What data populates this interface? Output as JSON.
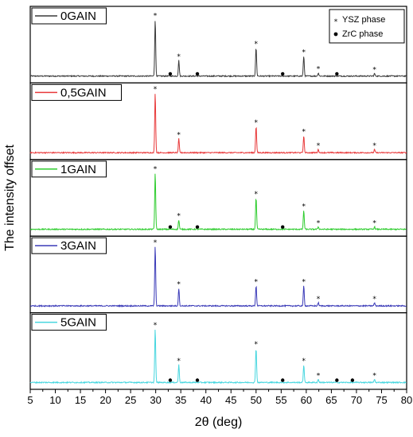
{
  "chart_data": {
    "type": "line",
    "xlabel": "2θ (deg)",
    "ylabel": "The intensity offset",
    "xlim": [
      5,
      80
    ],
    "x_ticks": [
      5,
      10,
      15,
      20,
      25,
      30,
      35,
      40,
      45,
      50,
      55,
      60,
      65,
      70,
      75,
      80
    ],
    "phase_legend": [
      {
        "symbol": "*",
        "label": "YSZ phase"
      },
      {
        "symbol": "•",
        "label": "ZrC phase"
      }
    ],
    "series": [
      {
        "name": "0GAIN",
        "color": "#3a3a3a",
        "peaks": [
          {
            "x": 29.9,
            "height": 0.9
          },
          {
            "x": 34.6,
            "height": 0.25
          },
          {
            "x": 50.0,
            "height": 0.45
          },
          {
            "x": 59.5,
            "height": 0.32
          },
          {
            "x": 62.4,
            "height": 0.05
          },
          {
            "x": 73.6,
            "height": 0.04
          }
        ],
        "ysz_markers": [
          29.9,
          34.6,
          50.0,
          59.5,
          62.4,
          73.6
        ],
        "zrc_markers": [
          32.9,
          38.3,
          55.3,
          66.1
        ]
      },
      {
        "name": "0,5GAIN",
        "color": "#e8393a",
        "peaks": [
          {
            "x": 29.9,
            "height": 0.95
          },
          {
            "x": 34.6,
            "height": 0.22
          },
          {
            "x": 50.0,
            "height": 0.42
          },
          {
            "x": 59.5,
            "height": 0.27
          },
          {
            "x": 62.4,
            "height": 0.05
          },
          {
            "x": 73.6,
            "height": 0.05
          }
        ],
        "ysz_markers": [
          29.9,
          34.6,
          50.0,
          59.5,
          62.4,
          73.6
        ],
        "zrc_markers": []
      },
      {
        "name": "1GAIN",
        "color": "#2ecc2e",
        "peaks": [
          {
            "x": 29.9,
            "height": 0.9
          },
          {
            "x": 34.6,
            "height": 0.15
          },
          {
            "x": 50.0,
            "height": 0.5
          },
          {
            "x": 59.5,
            "height": 0.3
          },
          {
            "x": 62.4,
            "height": 0.04
          },
          {
            "x": 73.6,
            "height": 0.04
          }
        ],
        "ysz_markers": [
          29.9,
          34.6,
          50.0,
          59.5,
          62.4,
          73.6
        ],
        "zrc_markers": [
          32.9,
          38.3,
          55.3
        ]
      },
      {
        "name": "3GAIN",
        "color": "#3b3bb8",
        "peaks": [
          {
            "x": 29.9,
            "height": 0.95
          },
          {
            "x": 34.6,
            "height": 0.28
          },
          {
            "x": 50.0,
            "height": 0.32
          },
          {
            "x": 59.5,
            "height": 0.32
          },
          {
            "x": 62.4,
            "height": 0.05
          },
          {
            "x": 73.6,
            "height": 0.05
          }
        ],
        "ysz_markers": [
          29.9,
          34.6,
          50.0,
          59.5,
          62.4,
          73.6
        ],
        "zrc_markers": []
      },
      {
        "name": "5GAIN",
        "color": "#47d6df",
        "peaks": [
          {
            "x": 29.9,
            "height": 0.85
          },
          {
            "x": 34.6,
            "height": 0.28
          },
          {
            "x": 50.0,
            "height": 0.55
          },
          {
            "x": 59.5,
            "height": 0.28
          },
          {
            "x": 62.4,
            "height": 0.05
          },
          {
            "x": 73.6,
            "height": 0.05
          }
        ],
        "ysz_markers": [
          29.9,
          34.6,
          50.0,
          59.5,
          62.4,
          73.6
        ],
        "zrc_markers": [
          32.9,
          38.3,
          55.3,
          66.1,
          69.2
        ]
      }
    ]
  }
}
